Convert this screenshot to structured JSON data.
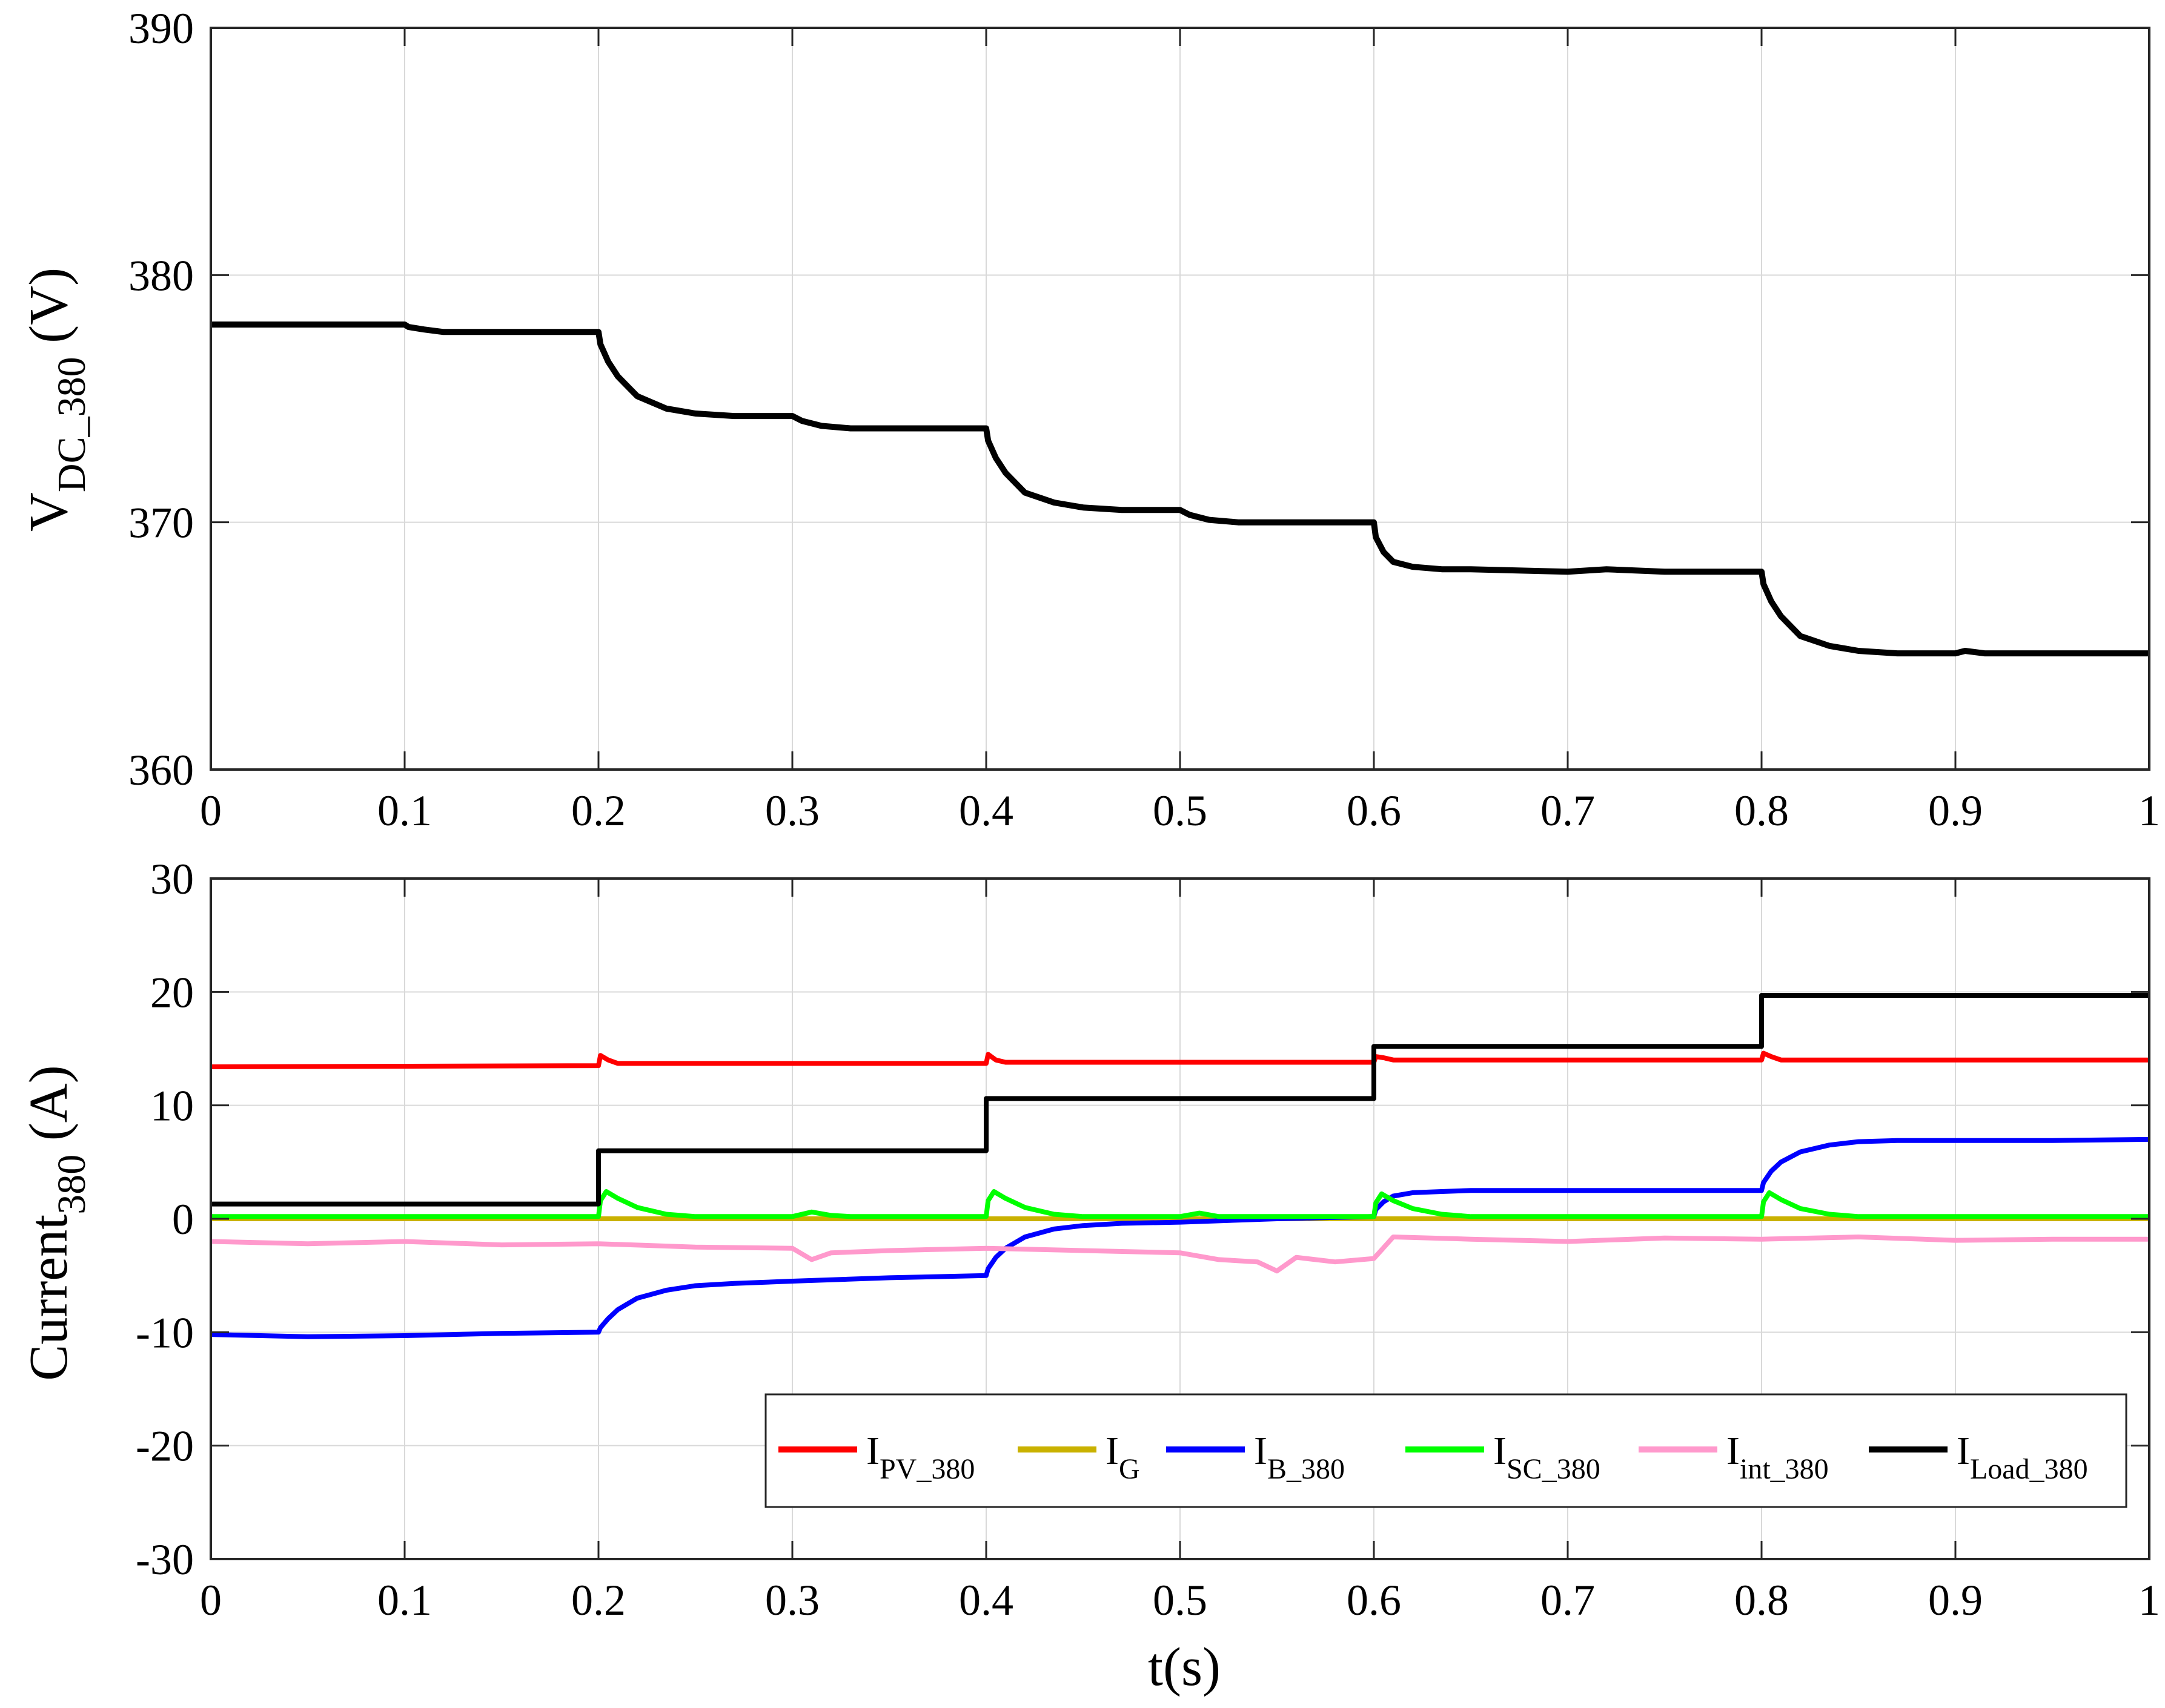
{
  "figure": {
    "xlabel": "t(s)"
  },
  "chart_data": [
    {
      "type": "line",
      "title": "",
      "xlabel": "",
      "ylabel": {
        "main": "V",
        "sub": "DC_380",
        "unit": " (V)"
      },
      "xlim": [
        0,
        1
      ],
      "ylim": [
        360,
        390
      ],
      "xticks": [
        0,
        0.1,
        0.2,
        0.3,
        0.4,
        0.5,
        0.6,
        0.7,
        0.8,
        0.9,
        1
      ],
      "xtick_labels": [
        "0",
        "0.1",
        "0.2",
        "0.3",
        "0.4",
        "0.5",
        "0.6",
        "0.7",
        "0.8",
        "0.9",
        "1"
      ],
      "yticks": [
        360,
        370,
        380,
        390
      ],
      "ytick_labels": [
        "360",
        "370",
        "380",
        "390"
      ],
      "grid": true,
      "series": [
        {
          "name": "",
          "color": "#000000",
          "x": [
            0,
            0.1,
            0.102,
            0.11,
            0.12,
            0.2,
            0.201,
            0.205,
            0.21,
            0.22,
            0.235,
            0.25,
            0.27,
            0.3,
            0.305,
            0.315,
            0.33,
            0.4,
            0.401,
            0.405,
            0.41,
            0.42,
            0.435,
            0.45,
            0.47,
            0.5,
            0.505,
            0.515,
            0.53,
            0.6,
            0.601,
            0.605,
            0.61,
            0.62,
            0.635,
            0.65,
            0.7,
            0.72,
            0.75,
            0.8,
            0.801,
            0.805,
            0.81,
            0.82,
            0.835,
            0.85,
            0.87,
            0.9,
            0.905,
            0.915,
            0.93,
            0.96,
            1.0
          ],
          "values": [
            378.0,
            378.0,
            377.9,
            377.8,
            377.7,
            377.7,
            377.2,
            376.5,
            375.9,
            375.1,
            374.6,
            374.4,
            374.3,
            374.3,
            374.1,
            373.9,
            373.8,
            373.8,
            373.3,
            372.6,
            372.0,
            371.2,
            370.8,
            370.6,
            370.5,
            370.5,
            370.3,
            370.1,
            370.0,
            370.0,
            369.4,
            368.8,
            368.4,
            368.2,
            368.1,
            368.1,
            368.0,
            368.1,
            368.0,
            368.0,
            367.5,
            366.8,
            366.2,
            365.4,
            365.0,
            364.8,
            364.7,
            364.7,
            364.8,
            364.7,
            364.7,
            364.7,
            364.7
          ]
        }
      ]
    },
    {
      "type": "line",
      "title": "",
      "xlabel": "t(s)",
      "ylabel": {
        "main": "Current",
        "sub": "380",
        "unit": " (A)"
      },
      "xlim": [
        0,
        1
      ],
      "ylim": [
        -30,
        30
      ],
      "xticks": [
        0,
        0.1,
        0.2,
        0.3,
        0.4,
        0.5,
        0.6,
        0.7,
        0.8,
        0.9,
        1
      ],
      "xtick_labels": [
        "0",
        "0.1",
        "0.2",
        "0.3",
        "0.4",
        "0.5",
        "0.6",
        "0.7",
        "0.8",
        "0.9",
        "1"
      ],
      "yticks": [
        -30,
        -20,
        -10,
        0,
        10,
        20,
        30
      ],
      "ytick_labels": [
        "-30",
        "-20",
        "-10",
        "0",
        "10",
        "20",
        "30"
      ],
      "grid": true,
      "legend": {
        "placement": "lower-right",
        "orientation": "horizontal"
      },
      "series": [
        {
          "name": "I",
          "name_sub": "PV_380",
          "color": "#ff0000",
          "x": [
            0,
            0.2,
            0.201,
            0.205,
            0.21,
            0.4,
            0.401,
            0.405,
            0.41,
            0.6,
            0.601,
            0.605,
            0.61,
            0.8,
            0.801,
            0.805,
            0.81,
            1.0
          ],
          "values": [
            13.4,
            13.5,
            14.4,
            14.0,
            13.7,
            13.7,
            14.5,
            14.0,
            13.8,
            13.8,
            14.3,
            14.2,
            14.0,
            14.0,
            14.6,
            14.3,
            14.0,
            14.0
          ]
        },
        {
          "name": "I",
          "name_sub": "G",
          "color": "#c9b100",
          "x": [
            0,
            1.0
          ],
          "values": [
            0,
            0
          ]
        },
        {
          "name": "I",
          "name_sub": "B_380",
          "color": "#0000ff",
          "x": [
            0,
            0.05,
            0.1,
            0.15,
            0.2,
            0.201,
            0.205,
            0.21,
            0.22,
            0.235,
            0.25,
            0.27,
            0.3,
            0.35,
            0.4,
            0.401,
            0.405,
            0.41,
            0.42,
            0.435,
            0.45,
            0.47,
            0.5,
            0.55,
            0.6,
            0.601,
            0.605,
            0.61,
            0.62,
            0.635,
            0.65,
            0.7,
            0.75,
            0.8,
            0.801,
            0.805,
            0.81,
            0.82,
            0.835,
            0.85,
            0.87,
            0.9,
            0.95,
            1.0
          ],
          "values": [
            -10.2,
            -10.4,
            -10.3,
            -10.1,
            -10.0,
            -9.6,
            -8.8,
            -8.0,
            -7.0,
            -6.3,
            -5.9,
            -5.7,
            -5.5,
            -5.2,
            -5.0,
            -4.4,
            -3.4,
            -2.6,
            -1.6,
            -0.9,
            -0.6,
            -0.4,
            -0.3,
            0.0,
            0.2,
            0.8,
            1.5,
            2.0,
            2.3,
            2.4,
            2.5,
            2.5,
            2.5,
            2.5,
            3.2,
            4.2,
            5.0,
            5.9,
            6.5,
            6.8,
            6.9,
            6.9,
            6.9,
            7.0
          ]
        },
        {
          "name": "I",
          "name_sub": "SC_380",
          "color": "#00ff00",
          "x": [
            0,
            0.2,
            0.201,
            0.204,
            0.21,
            0.22,
            0.235,
            0.25,
            0.3,
            0.31,
            0.32,
            0.33,
            0.4,
            0.401,
            0.404,
            0.41,
            0.42,
            0.435,
            0.45,
            0.5,
            0.51,
            0.52,
            0.6,
            0.601,
            0.604,
            0.61,
            0.62,
            0.635,
            0.65,
            0.8,
            0.801,
            0.804,
            0.81,
            0.82,
            0.835,
            0.85,
            1.0
          ],
          "values": [
            0.2,
            0.2,
            1.6,
            2.4,
            1.8,
            1.0,
            0.4,
            0.2,
            0.2,
            0.6,
            0.3,
            0.2,
            0.2,
            1.6,
            2.4,
            1.8,
            1.0,
            0.4,
            0.2,
            0.2,
            0.5,
            0.2,
            0.2,
            1.4,
            2.2,
            1.6,
            0.9,
            0.4,
            0.2,
            0.2,
            1.5,
            2.3,
            1.7,
            0.9,
            0.4,
            0.2,
            0.2
          ]
        },
        {
          "name": "I",
          "name_sub": "int_380",
          "color": "#ff99cc",
          "x": [
            0,
            0.05,
            0.1,
            0.15,
            0.2,
            0.25,
            0.3,
            0.31,
            0.32,
            0.35,
            0.4,
            0.45,
            0.5,
            0.52,
            0.54,
            0.55,
            0.56,
            0.58,
            0.6,
            0.61,
            0.65,
            0.7,
            0.75,
            0.8,
            0.85,
            0.9,
            0.95,
            1.0
          ],
          "values": [
            -2.0,
            -2.2,
            -2.0,
            -2.3,
            -2.2,
            -2.5,
            -2.6,
            -3.6,
            -3.0,
            -2.8,
            -2.6,
            -2.8,
            -3.0,
            -3.6,
            -3.8,
            -4.6,
            -3.4,
            -3.8,
            -3.5,
            -1.6,
            -1.8,
            -2.0,
            -1.7,
            -1.8,
            -1.6,
            -1.9,
            -1.8,
            -1.8
          ]
        },
        {
          "name": "I",
          "name_sub": "Load_380",
          "color": "#000000",
          "x": [
            0,
            0.2,
            0.2,
            0.4,
            0.4,
            0.6,
            0.6,
            0.8,
            0.8,
            1.0
          ],
          "values": [
            1.3,
            1.3,
            6.0,
            6.0,
            10.6,
            10.6,
            15.2,
            15.2,
            19.7,
            19.7
          ]
        }
      ]
    }
  ]
}
